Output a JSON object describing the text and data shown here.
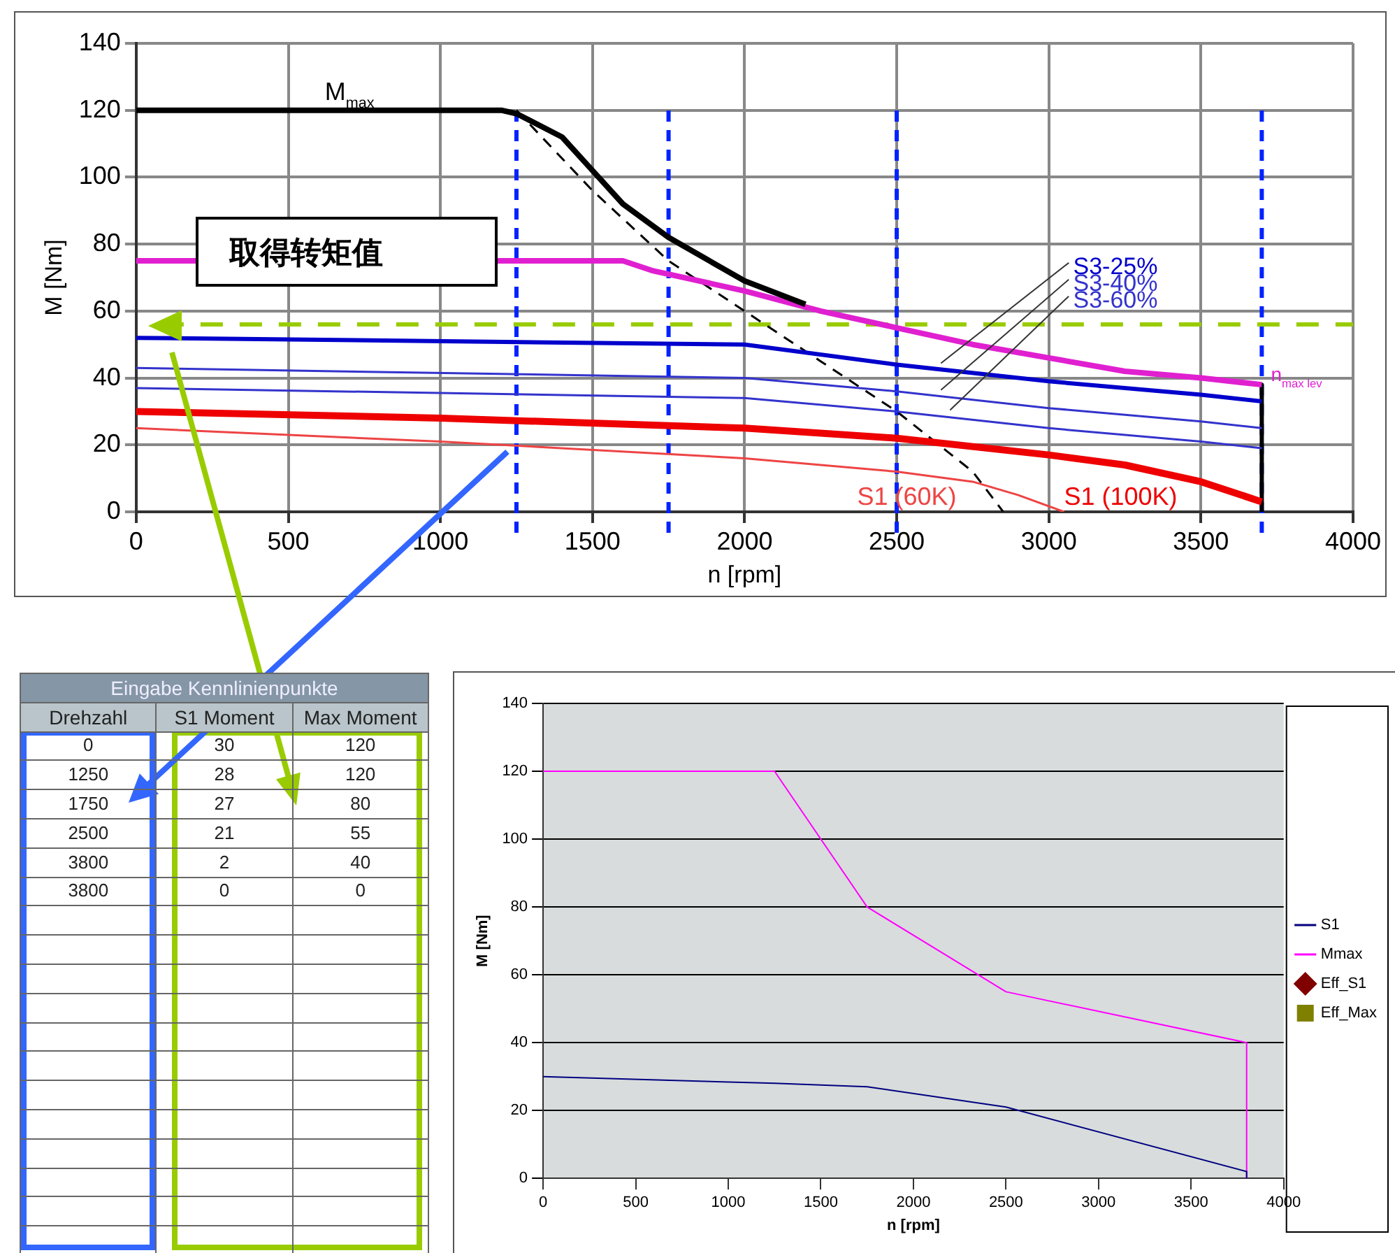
{
  "chart_data": [
    {
      "type": "line",
      "xlabel": "n [rpm]",
      "ylabel": "M [Nm]",
      "xlim": [
        0,
        4000
      ],
      "xticks": [
        0,
        500,
        1000,
        1500,
        2000,
        2500,
        3000,
        3500,
        4000
      ],
      "ylim": [
        0,
        140
      ],
      "yticks": [
        0,
        20,
        40,
        60,
        80,
        100,
        120,
        140
      ],
      "grid": true,
      "legend": false,
      "marker": "none",
      "series": [
        {
          "name": "M$_{max}$",
          "color": "#000000",
          "x": [
            0,
            1200,
            1250,
            1400,
            1500,
            1600,
            1750,
            2000,
            2200
          ],
          "values": [
            120,
            120,
            119,
            112,
            102,
            92,
            82,
            69,
            62
          ]
        },
        {
          "name": "n$_{max lev}$",
          "color": "#e020d0",
          "x": [
            0,
            1600,
            1700,
            2000,
            2250,
            2500,
            2750,
            3000,
            3250,
            3500,
            3700
          ],
          "values": [
            75,
            75,
            72,
            66,
            60,
            55,
            50,
            46,
            42,
            40,
            38
          ]
        },
        {
          "name": "S3-25%",
          "color": "#0000cc",
          "x": [
            0,
            2000,
            2500,
            3000,
            3500,
            3700
          ],
          "values": [
            52,
            50,
            44,
            39,
            35,
            33
          ]
        },
        {
          "name": "S3-40%",
          "color": "#3333cc",
          "x": [
            0,
            2000,
            2500,
            3000,
            3500,
            3700
          ],
          "values": [
            43,
            40,
            36,
            31,
            27,
            25
          ]
        },
        {
          "name": "S3-60%",
          "color": "#3333cc",
          "x": [
            0,
            2000,
            2500,
            3000,
            3500,
            3700
          ],
          "values": [
            37,
            34,
            30,
            25,
            21,
            19
          ]
        },
        {
          "name": "S1 (100K)",
          "color": "#ee0000",
          "x": [
            0,
            1000,
            2000,
            2500,
            3000,
            3250,
            3500,
            3700
          ],
          "values": [
            30,
            28,
            25,
            22,
            17,
            14,
            9,
            3
          ]
        },
        {
          "name": "S1 (60K)",
          "color": "#ee4444",
          "x": [
            0,
            1000,
            2000,
            2500,
            2750,
            2900,
            3050
          ],
          "values": [
            25,
            21,
            16,
            12,
            9,
            5,
            0
          ]
        },
        {
          "color": "#000000",
          "line_style": "dashed",
          "x": [
            1250,
            1500,
            1750,
            2000,
            2250,
            2500,
            2750,
            2850
          ],
          "values": [
            120,
            96,
            75,
            60,
            45,
            30,
            12,
            0
          ]
        },
        {
          "color": "#000000",
          "x": [
            3700,
            3700
          ],
          "values": [
            38,
            0
          ]
        }
      ],
      "ref_lines": [
        {
          "axis": "x",
          "value": 1250,
          "color": "#0022ff",
          "line_style": "dashed"
        },
        {
          "axis": "x",
          "value": 1750,
          "color": "#0022ff",
          "line_style": "dashed"
        },
        {
          "axis": "x",
          "value": 2500,
          "color": "#0022ff",
          "line_style": "dashed"
        },
        {
          "axis": "x",
          "value": 3700,
          "color": "#0022ff",
          "line_style": "dashed"
        },
        {
          "axis": "y",
          "value": 56,
          "color": "#99cc00",
          "line_style": "dashed"
        }
      ],
      "annotations": [
        "取得转矩值"
      ]
    },
    {
      "type": "line",
      "xlabel": "n [rpm]",
      "ylabel": "M [Nm]",
      "xlim": [
        0,
        4000
      ],
      "xticks": [
        0,
        500,
        1000,
        1500,
        2000,
        2500,
        3000,
        3500,
        4000
      ],
      "ylim": [
        0,
        140
      ],
      "yticks": [
        0,
        20,
        40,
        60,
        80,
        100,
        120,
        140
      ],
      "grid": "y",
      "legend": "right",
      "marker": "none",
      "x": [
        0,
        1250,
        1750,
        2500,
        3800,
        3800
      ],
      "series": [
        {
          "name": "S1",
          "color": "#000080",
          "values": [
            30,
            28,
            27,
            21,
            2,
            0
          ]
        },
        {
          "name": "Mmax",
          "color": "#ff00ff",
          "values": [
            120,
            120,
            80,
            55,
            40,
            0
          ]
        },
        {
          "name": "Eff_S1",
          "type": "scatter",
          "marker": "diamond",
          "color": "#800000",
          "values": [
            null,
            null,
            null,
            null,
            null,
            null
          ]
        },
        {
          "name": "Eff_Max",
          "type": "scatter",
          "marker": "square",
          "color": "#808000",
          "values": [
            null,
            null,
            null,
            null,
            null,
            null
          ]
        }
      ]
    },
    {
      "type": "other",
      "title": "Eingabe Kennlinienpunkte",
      "annotations": [
        "Drehzahl",
        "S1 Moment",
        "Max Moment",
        "0",
        "30",
        "120",
        "1250",
        "28",
        "120",
        "1750",
        "27",
        "80",
        "2500",
        "21",
        "55",
        "3800",
        "2",
        "40",
        "3800",
        "0",
        "0"
      ]
    }
  ]
}
